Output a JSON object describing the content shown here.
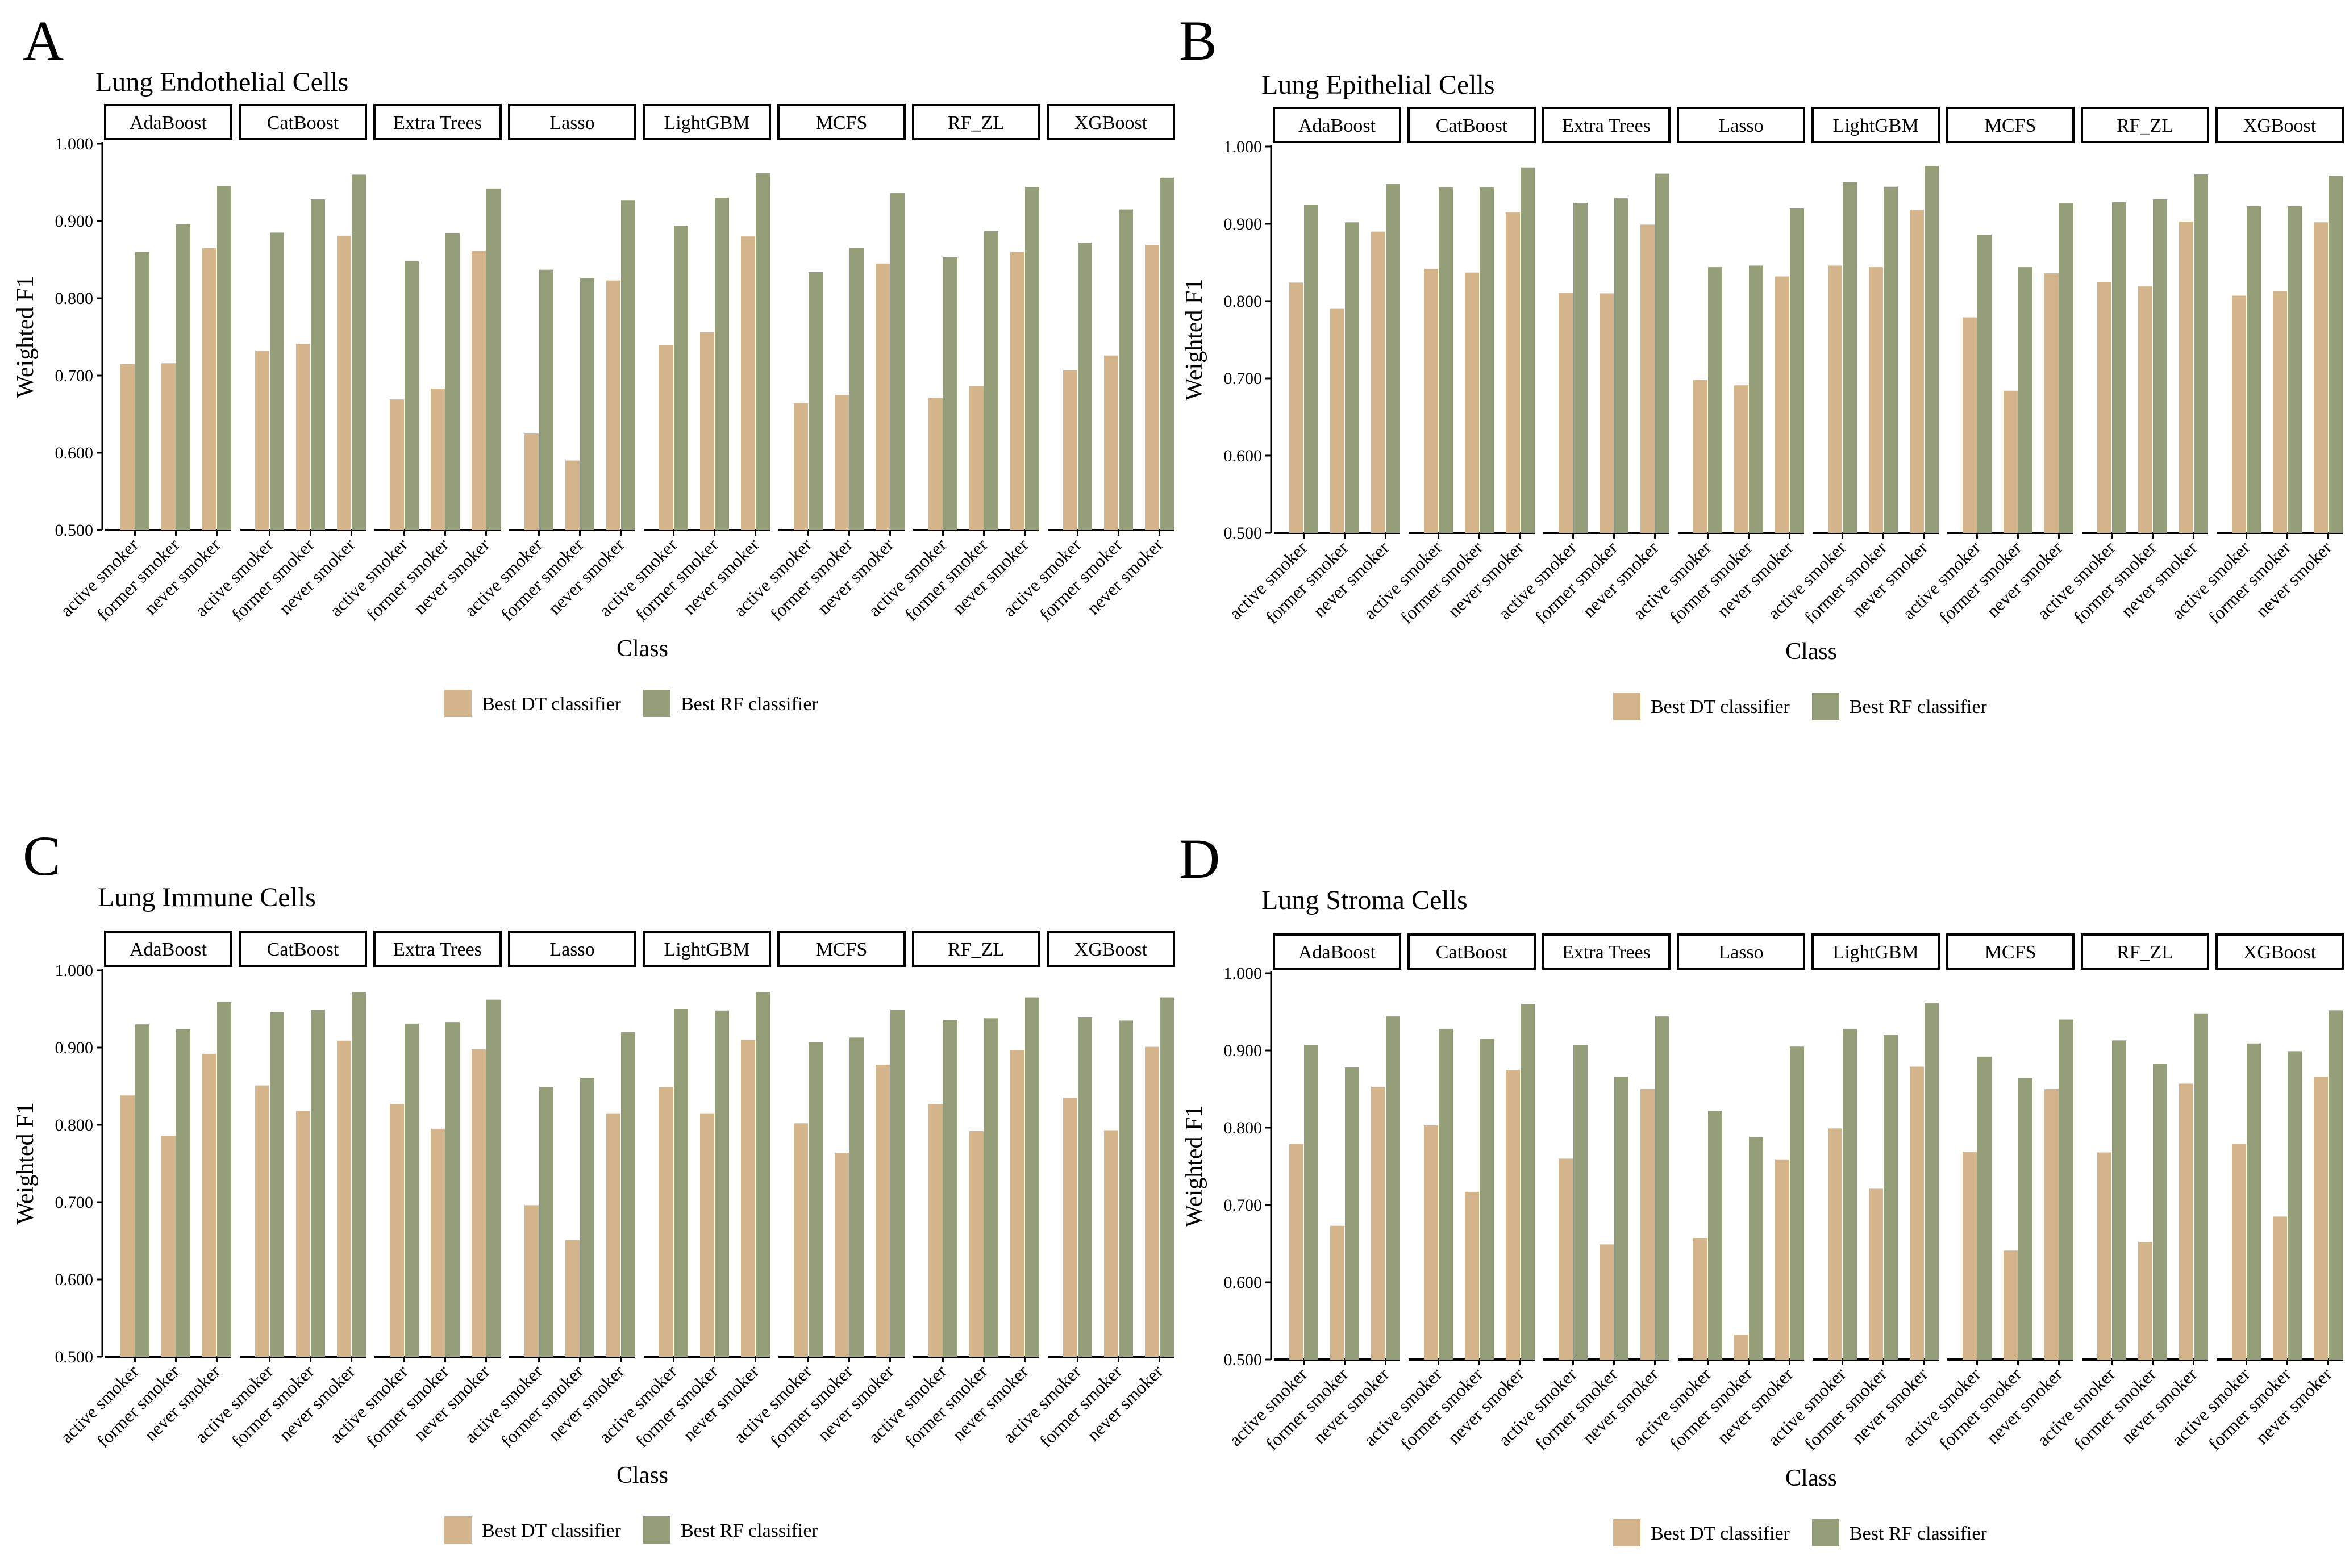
{
  "colors": {
    "dt": "#d3b48b",
    "rf": "#949f79",
    "axis": "#000000",
    "background": "#ffffff"
  },
  "legend": {
    "dt_label": "Best DT classifier",
    "rf_label": "Best RF classifier"
  },
  "chart_data": [
    {
      "type": "bar",
      "panel": "A",
      "title": "Lung Endothelial Cells",
      "xlabel": "Class",
      "ylabel": "Weighted F1",
      "ylim": [
        0.5,
        1.0
      ],
      "yticks": [
        "0.500",
        "0.600",
        "0.700",
        "0.800",
        "0.900",
        "1.000"
      ],
      "facets": [
        "AdaBoost",
        "CatBoost",
        "Extra Trees",
        "Lasso",
        "LightGBM",
        "MCFS",
        "RF_ZL",
        "XGBoost"
      ],
      "categories": [
        "active smoker",
        "former smoker",
        "never smoker"
      ],
      "series": [
        {
          "name": "Best DT classifier",
          "values": [
            [
              0.715,
              0.716,
              0.865
            ],
            [
              0.732,
              0.741,
              0.881
            ],
            [
              0.669,
              0.683,
              0.861
            ],
            [
              0.625,
              0.59,
              0.823
            ],
            [
              0.739,
              0.756,
              0.88
            ],
            [
              0.664,
              0.675,
              0.845
            ],
            [
              0.671,
              0.686,
              0.86
            ],
            [
              0.707,
              0.726,
              0.869
            ]
          ]
        },
        {
          "name": "Best RF classifier",
          "values": [
            [
              0.86,
              0.896,
              0.945
            ],
            [
              0.885,
              0.928,
              0.96
            ],
            [
              0.848,
              0.884,
              0.942
            ],
            [
              0.837,
              0.826,
              0.927
            ],
            [
              0.894,
              0.93,
              0.962
            ],
            [
              0.834,
              0.865,
              0.936
            ],
            [
              0.853,
              0.887,
              0.944
            ],
            [
              0.872,
              0.915,
              0.956
            ]
          ]
        }
      ]
    },
    {
      "type": "bar",
      "panel": "B",
      "title": "Lung Epithelial Cells",
      "xlabel": "Class",
      "ylabel": "Weighted F1",
      "ylim": [
        0.5,
        1.0
      ],
      "yticks": [
        "0.500",
        "0.600",
        "0.700",
        "0.800",
        "0.900",
        "1.000"
      ],
      "facets": [
        "AdaBoost",
        "CatBoost",
        "Extra Trees",
        "Lasso",
        "LightGBM",
        "MCFS",
        "RF_ZL",
        "XGBoost"
      ],
      "categories": [
        "active smoker",
        "former smoker",
        "never smoker"
      ],
      "series": [
        {
          "name": "Best DT classifier",
          "values": [
            [
              0.824,
              0.79,
              0.89
            ],
            [
              0.842,
              0.837,
              0.915
            ],
            [
              0.811,
              0.81,
              0.899
            ],
            [
              0.698,
              0.691,
              0.832
            ],
            [
              0.846,
              0.844,
              0.918
            ],
            [
              0.779,
              0.684,
              0.836
            ],
            [
              0.825,
              0.819,
              0.903
            ],
            [
              0.807,
              0.813,
              0.902
            ]
          ]
        },
        {
          "name": "Best RF classifier",
          "values": [
            [
              0.925,
              0.902,
              0.952
            ],
            [
              0.947,
              0.947,
              0.973
            ],
            [
              0.927,
              0.933,
              0.965
            ],
            [
              0.844,
              0.846,
              0.92
            ],
            [
              0.954,
              0.948,
              0.975
            ],
            [
              0.886,
              0.844,
              0.927
            ],
            [
              0.928,
              0.932,
              0.964
            ],
            [
              0.923,
              0.923,
              0.962
            ]
          ]
        }
      ]
    },
    {
      "type": "bar",
      "panel": "C",
      "title": "Lung Immune Cells",
      "xlabel": "Class",
      "ylabel": "Weighted F1",
      "ylim": [
        0.5,
        1.0
      ],
      "yticks": [
        "0.500",
        "0.600",
        "0.700",
        "0.800",
        "0.900",
        "1.000"
      ],
      "facets": [
        "AdaBoost",
        "CatBoost",
        "Extra Trees",
        "Lasso",
        "LightGBM",
        "MCFS",
        "RF_ZL",
        "XGBoost"
      ],
      "categories": [
        "active smoker",
        "former smoker",
        "never smoker"
      ],
      "series": [
        {
          "name": "Best DT classifier",
          "values": [
            [
              0.838,
              0.786,
              0.892
            ],
            [
              0.851,
              0.818,
              0.909
            ],
            [
              0.827,
              0.795,
              0.898
            ],
            [
              0.696,
              0.651,
              0.815
            ],
            [
              0.849,
              0.815,
              0.91
            ],
            [
              0.802,
              0.764,
              0.878
            ],
            [
              0.827,
              0.792,
              0.897
            ],
            [
              0.835,
              0.793,
              0.901
            ]
          ]
        },
        {
          "name": "Best RF classifier",
          "values": [
            [
              0.93,
              0.924,
              0.959
            ],
            [
              0.946,
              0.949,
              0.972
            ],
            [
              0.931,
              0.933,
              0.962
            ],
            [
              0.849,
              0.861,
              0.92
            ],
            [
              0.95,
              0.948,
              0.972
            ],
            [
              0.907,
              0.913,
              0.949
            ],
            [
              0.936,
              0.938,
              0.965
            ],
            [
              0.939,
              0.935,
              0.965
            ]
          ]
        }
      ]
    },
    {
      "type": "bar",
      "panel": "D",
      "title": "Lung Stroma Cells",
      "xlabel": "Class",
      "ylabel": "Weighted F1",
      "ylim": [
        0.5,
        1.0
      ],
      "yticks": [
        "0.500",
        "0.600",
        "0.700",
        "0.800",
        "0.900",
        "1.000"
      ],
      "facets": [
        "AdaBoost",
        "CatBoost",
        "Extra Trees",
        "Lasso",
        "LightGBM",
        "MCFS",
        "RF_ZL",
        "XGBoost"
      ],
      "categories": [
        "active smoker",
        "former smoker",
        "never smoker"
      ],
      "series": [
        {
          "name": "Best DT classifier",
          "values": [
            [
              0.779,
              0.673,
              0.853
            ],
            [
              0.803,
              0.717,
              0.875
            ],
            [
              0.76,
              0.649,
              0.85
            ],
            [
              0.657,
              0.532,
              0.759
            ],
            [
              0.799,
              0.721,
              0.879
            ],
            [
              0.769,
              0.641,
              0.85
            ],
            [
              0.768,
              0.652,
              0.857
            ],
            [
              0.779,
              0.685,
              0.866
            ]
          ]
        },
        {
          "name": "Best RF classifier",
          "values": [
            [
              0.907,
              0.878,
              0.944
            ],
            [
              0.928,
              0.915,
              0.96
            ],
            [
              0.907,
              0.866,
              0.944
            ],
            [
              0.822,
              0.788,
              0.905
            ],
            [
              0.928,
              0.92,
              0.961
            ],
            [
              0.892,
              0.864,
              0.94
            ],
            [
              0.913,
              0.883,
              0.948
            ],
            [
              0.909,
              0.899,
              0.952
            ]
          ]
        }
      ]
    }
  ]
}
